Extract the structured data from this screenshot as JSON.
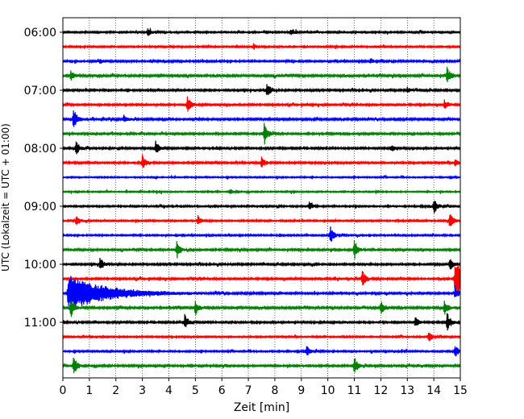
{
  "chart_data": {
    "type": "line",
    "title": "",
    "xlabel": "Zeit  [min]",
    "ylabel": "UTC (Lokalzeit = UTC + 01:00)",
    "xlim": [
      0,
      15
    ],
    "x_ticks": [
      0,
      1,
      2,
      3,
      4,
      5,
      6,
      7,
      8,
      9,
      10,
      11,
      12,
      13,
      14,
      15
    ],
    "grid": "vertical-dotted",
    "legend": "none",
    "row_interval_minutes": 15,
    "colors_cycle": [
      "#000000",
      "#ff0000",
      "#0000ff",
      "#008000"
    ],
    "y_ticks": [
      {
        "label": "06:00",
        "row": 0
      },
      {
        "label": "07:00",
        "row": 4
      },
      {
        "label": "08:00",
        "row": 8
      },
      {
        "label": "09:00",
        "row": 12
      },
      {
        "label": "10:00",
        "row": 16
      },
      {
        "label": "11:00",
        "row": 20
      }
    ],
    "series": [
      {
        "time": "06:00",
        "color": "#000000",
        "base_amp": 0.06,
        "events": [
          {
            "t": 3.2,
            "amp": 0.35
          },
          {
            "t": 8.6,
            "amp": 0.35
          }
        ]
      },
      {
        "time": "06:15",
        "color": "#ff0000",
        "base_amp": 0.06,
        "events": [
          {
            "t": 7.2,
            "amp": 0.25
          }
        ]
      },
      {
        "time": "06:30",
        "color": "#0000ff",
        "base_amp": 0.07,
        "events": [
          {
            "t": 1.4,
            "amp": 0.25
          },
          {
            "t": 11.6,
            "amp": 0.25
          }
        ]
      },
      {
        "time": "06:45",
        "color": "#008000",
        "base_amp": 0.08,
        "events": [
          {
            "t": 0.3,
            "amp": 0.45
          },
          {
            "t": 14.5,
            "amp": 0.75
          }
        ]
      },
      {
        "time": "07:00",
        "color": "#000000",
        "base_amp": 0.07,
        "events": [
          {
            "t": 7.7,
            "amp": 0.75
          },
          {
            "t": 13.0,
            "amp": 0.25
          }
        ]
      },
      {
        "time": "07:15",
        "color": "#ff0000",
        "base_amp": 0.07,
        "events": [
          {
            "t": 4.7,
            "amp": 0.7
          },
          {
            "t": 14.4,
            "amp": 0.45
          }
        ]
      },
      {
        "time": "07:30",
        "color": "#0000ff",
        "base_amp": 0.08,
        "events": [
          {
            "t": 0.4,
            "amp": 1.0
          },
          {
            "t": 2.3,
            "amp": 0.35
          }
        ]
      },
      {
        "time": "07:45",
        "color": "#008000",
        "base_amp": 0.07,
        "events": [
          {
            "t": 7.6,
            "amp": 1.0
          }
        ]
      },
      {
        "time": "08:00",
        "color": "#000000",
        "base_amp": 0.07,
        "events": [
          {
            "t": 0.5,
            "amp": 0.6
          },
          {
            "t": 3.5,
            "amp": 0.6
          },
          {
            "t": 12.4,
            "amp": 0.3
          }
        ]
      },
      {
        "time": "08:15",
        "color": "#ff0000",
        "base_amp": 0.07,
        "events": [
          {
            "t": 3.0,
            "amp": 0.7
          },
          {
            "t": 7.5,
            "amp": 0.55
          },
          {
            "t": 14.8,
            "amp": 0.4
          }
        ]
      },
      {
        "time": "08:30",
        "color": "#0000ff",
        "base_amp": 0.05,
        "events": []
      },
      {
        "time": "08:45",
        "color": "#008000",
        "base_amp": 0.05,
        "events": [
          {
            "t": 6.3,
            "amp": 0.25
          }
        ]
      },
      {
        "time": "09:00",
        "color": "#000000",
        "base_amp": 0.06,
        "events": [
          {
            "t": 9.3,
            "amp": 0.35
          },
          {
            "t": 14.0,
            "amp": 0.7
          }
        ]
      },
      {
        "time": "09:15",
        "color": "#ff0000",
        "base_amp": 0.06,
        "events": [
          {
            "t": 0.5,
            "amp": 0.55
          },
          {
            "t": 5.1,
            "amp": 0.45
          },
          {
            "t": 14.6,
            "amp": 0.8
          }
        ]
      },
      {
        "time": "09:30",
        "color": "#0000ff",
        "base_amp": 0.06,
        "events": [
          {
            "t": 10.1,
            "amp": 0.75
          }
        ]
      },
      {
        "time": "09:45",
        "color": "#008000",
        "base_amp": 0.07,
        "events": [
          {
            "t": 4.3,
            "amp": 0.8
          },
          {
            "t": 11.0,
            "amp": 0.9
          }
        ]
      },
      {
        "time": "10:00",
        "color": "#000000",
        "base_amp": 0.07,
        "events": [
          {
            "t": 1.4,
            "amp": 0.6
          },
          {
            "t": 14.6,
            "amp": 0.6
          }
        ]
      },
      {
        "time": "10:15",
        "color": "#ff0000",
        "base_amp": 0.07,
        "events": [
          {
            "t": 11.3,
            "amp": 0.75
          },
          {
            "t": 14.8,
            "amp": 1.6
          }
        ]
      },
      {
        "time": "10:30",
        "color": "#0000ff",
        "base_amp": 0.07,
        "events": [
          {
            "t": 0.2,
            "amp": 1.6
          },
          {
            "t": 14.8,
            "amp": 0.6
          }
        ]
      },
      {
        "time": "10:45",
        "color": "#008000",
        "base_amp": 0.08,
        "events": [
          {
            "t": 0.3,
            "amp": 0.9
          },
          {
            "t": 5.0,
            "amp": 0.7
          },
          {
            "t": 12.0,
            "amp": 0.7
          },
          {
            "t": 14.4,
            "amp": 0.7
          }
        ]
      },
      {
        "time": "11:00",
        "color": "#000000",
        "base_amp": 0.07,
        "events": [
          {
            "t": 4.6,
            "amp": 0.7
          },
          {
            "t": 13.3,
            "amp": 0.5
          },
          {
            "t": 14.5,
            "amp": 0.9
          }
        ]
      },
      {
        "time": "11:15",
        "color": "#ff0000",
        "base_amp": 0.06,
        "events": [
          {
            "t": 13.8,
            "amp": 0.5
          }
        ]
      },
      {
        "time": "11:30",
        "color": "#0000ff",
        "base_amp": 0.06,
        "events": [
          {
            "t": 9.2,
            "amp": 0.55
          },
          {
            "t": 14.8,
            "amp": 0.6
          }
        ]
      },
      {
        "time": "11:45",
        "color": "#008000",
        "base_amp": 0.07,
        "events": [
          {
            "t": 0.4,
            "amp": 0.9
          },
          {
            "t": 11.0,
            "amp": 0.8
          }
        ]
      }
    ]
  }
}
